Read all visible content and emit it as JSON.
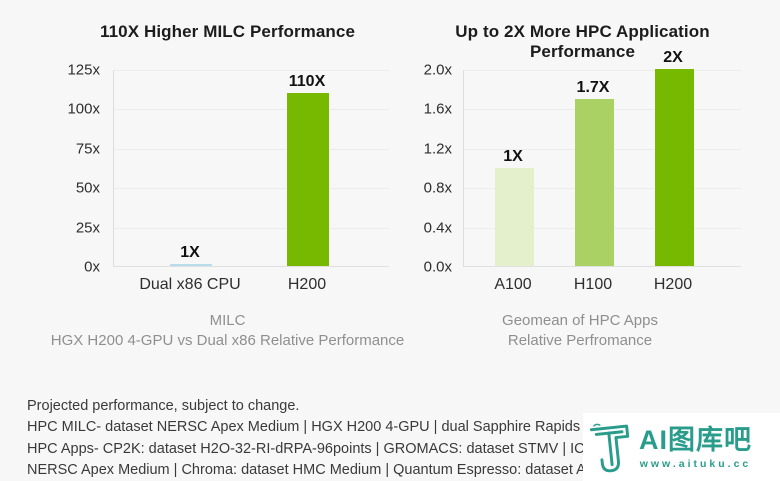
{
  "page": {
    "background": "#f7f7f7"
  },
  "chart_data": [
    {
      "type": "bar",
      "title": "110X Higher MILC Performance",
      "categories": [
        "Dual x86 CPU",
        "H200"
      ],
      "values": [
        1,
        110
      ],
      "bar_labels": [
        "1X",
        "110X"
      ],
      "bar_colors": [
        "#b8dcea",
        "#76b900"
      ],
      "ylim": [
        0,
        125
      ],
      "ytick_values": [
        0,
        25,
        50,
        75,
        100,
        125
      ],
      "ytick_labels": [
        "0x",
        "25x",
        "50x",
        "75x",
        "100x",
        "125x"
      ],
      "xlabel": "",
      "ylabel": "",
      "grid": true,
      "legend": "none",
      "caption": [
        "MILC",
        "HGX H200 4-GPU vs Dual x86 Relative Performance"
      ]
    },
    {
      "type": "bar",
      "title": "Up to 2X More HPC Application Performance",
      "categories": [
        "A100",
        "H100",
        "H200"
      ],
      "values": [
        1.0,
        1.7,
        2.0
      ],
      "bar_labels": [
        "1X",
        "1.7X",
        "2X"
      ],
      "bar_colors": [
        "#e3f0cb",
        "#a9d164",
        "#76b900"
      ],
      "ylim": [
        0,
        2.0
      ],
      "ytick_values": [
        0,
        0.4,
        0.8,
        1.2,
        1.6,
        2.0
      ],
      "ytick_labels": [
        "0.0x",
        "0.4x",
        "0.8x",
        "1.2x",
        "1.6x",
        "2.0x"
      ],
      "xlabel": "",
      "ylabel": "",
      "grid": true,
      "legend": "none",
      "caption": [
        "Geomean of HPC Apps",
        "Relative Perfromance"
      ]
    }
  ],
  "footnote": {
    "lines": [
      "Projected performance, subject to change.",
      "HPC MILC- dataset NERSC Apex Medium | HGX H200 4-GPU | dual Sapphire Rapids 8480",
      "HPC Apps- CP2K: dataset H2O-32-RI-dRPA-96points | GROMACS: dataset STMV | ICON: da",
      "NERSC Apex Medium | Chroma: dataset HMC Medium | Quantum Espresso: dataset AUSUR"
    ]
  },
  "watermark": {
    "brand_text": "AI图库吧",
    "url": "www.aituku.cc",
    "color": "#2a9c8c"
  },
  "colors": {
    "background": "#f7f7f7",
    "nvidia_green": "#76b900",
    "h100_green": "#a9d164",
    "a100_green": "#e3f0cb",
    "cpu_blue": "#b8dcea",
    "gridline": "#ececec",
    "caption_gray": "#8f8f8f"
  }
}
